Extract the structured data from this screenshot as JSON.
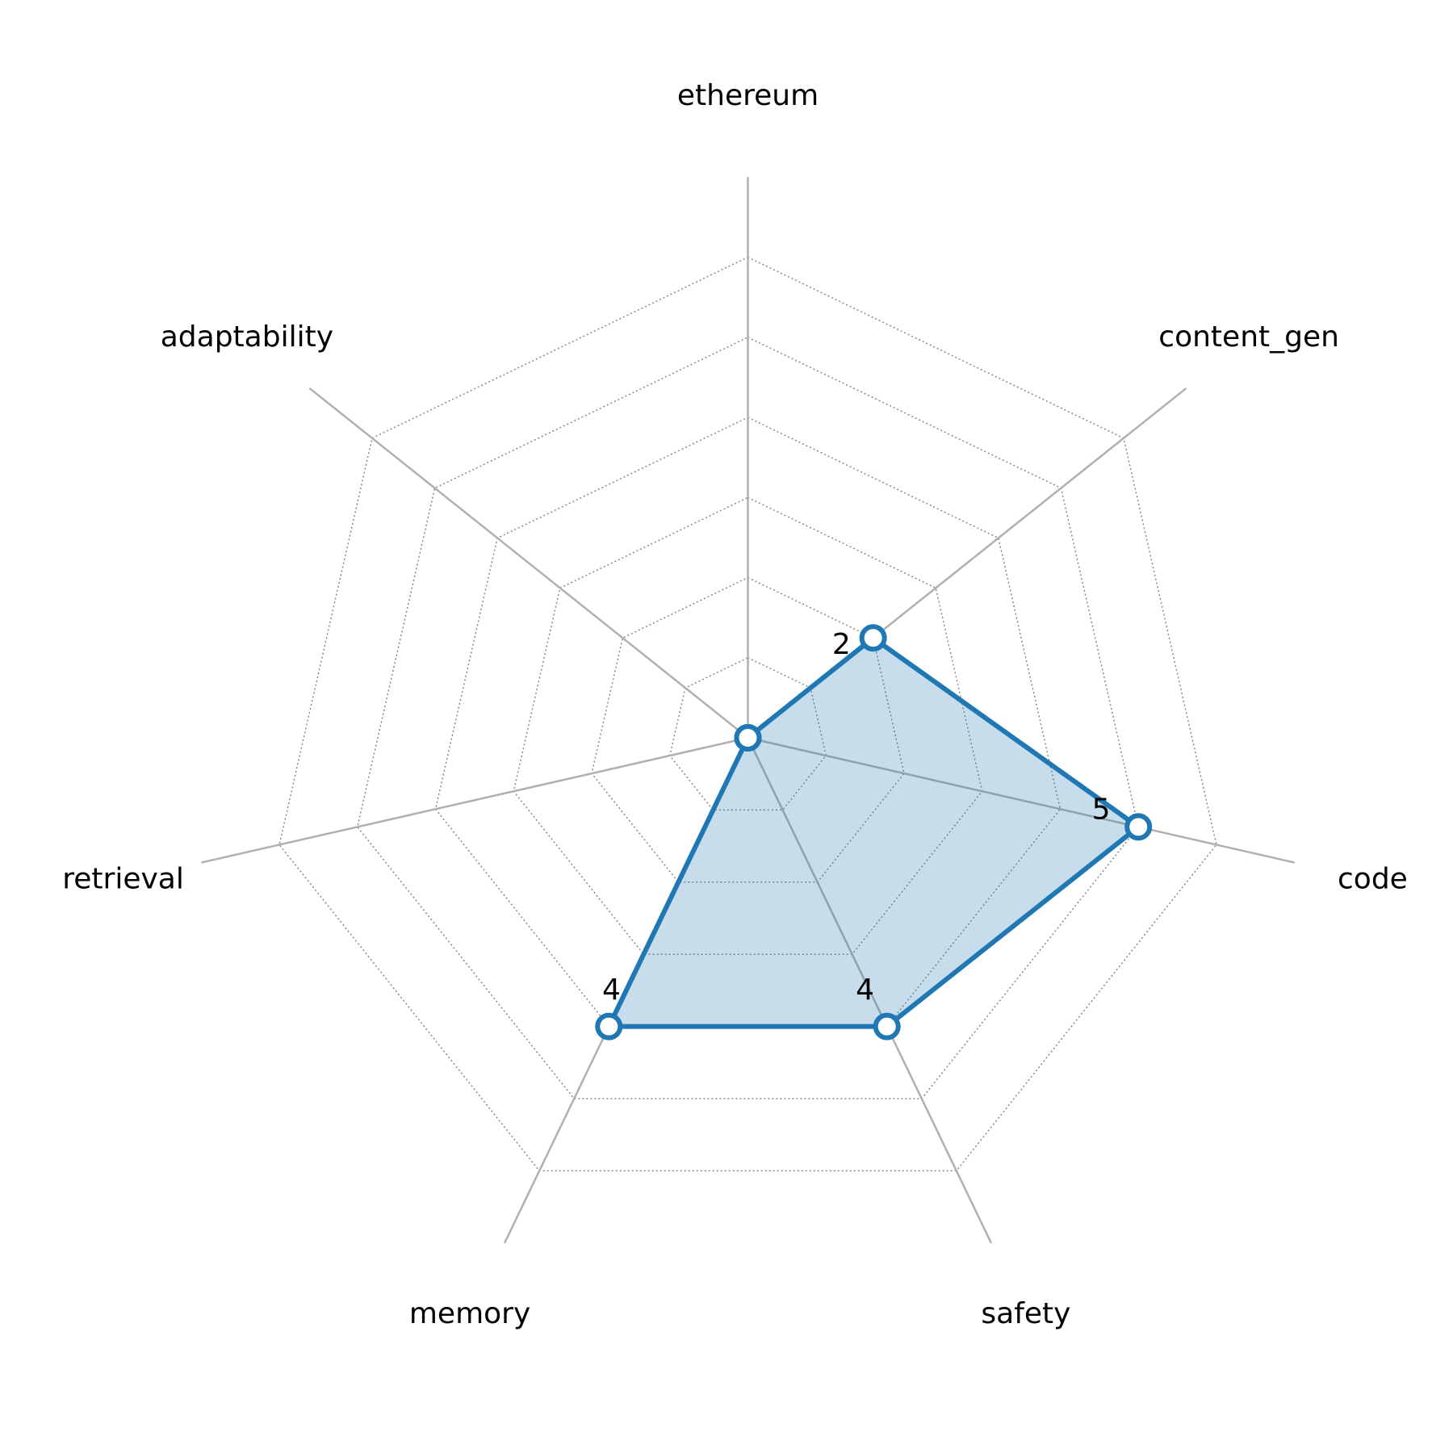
{
  "chart_data": {
    "type": "radar",
    "categories": [
      "ethereum",
      "content_gen",
      "code",
      "safety",
      "memory",
      "retrieval",
      "adaptability"
    ],
    "values": [
      0,
      2,
      5,
      4,
      4,
      0,
      0
    ],
    "value_labels": [
      null,
      "2",
      "5",
      "4",
      "4",
      null,
      null
    ],
    "color": "#1f77b4",
    "rlim": [
      0,
      7
    ],
    "rticks": [
      1,
      2,
      3,
      4,
      5,
      6
    ],
    "grid": true
  }
}
